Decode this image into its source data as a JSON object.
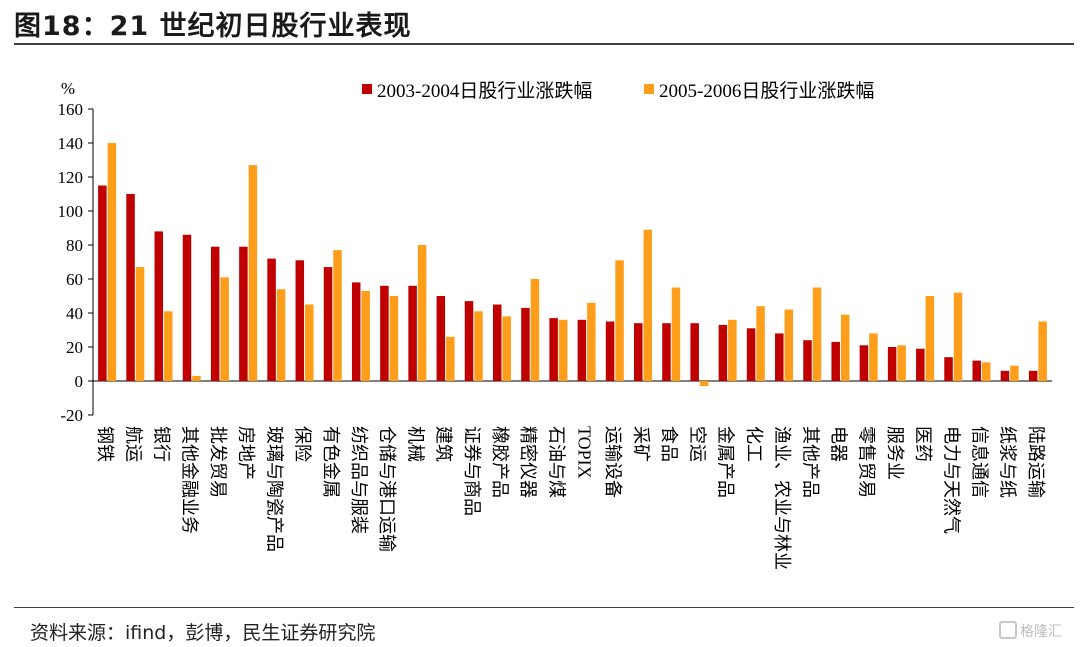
{
  "header": {
    "title": "图18：21 世纪初日股行业表现"
  },
  "footer": {
    "source": "资料来源：ifind，彭博，民生证券研究院",
    "watermark": "格隆汇"
  },
  "chart_data": {
    "type": "bar",
    "unit": "%",
    "ylim": [
      -20,
      160
    ],
    "yticks": [
      160,
      140,
      120,
      100,
      80,
      60,
      40,
      20,
      0,
      -20
    ],
    "legend_position": "top",
    "categories": [
      "钢铁",
      "航运",
      "银行",
      "其他金融业务",
      "批发贸易",
      "房地产",
      "玻璃与陶瓷产品",
      "保险",
      "有色金属",
      "纺织品与服装",
      "仓储与港口运输",
      "机械",
      "建筑",
      "证券与商品",
      "橡胶产品",
      "精密仪器",
      "石油与煤",
      "TOPIX",
      "运输设备",
      "采矿",
      "食品",
      "空运",
      "金属产品",
      "化工",
      "渔业、农业与林业",
      "其他产品",
      "电器",
      "零售贸易",
      "服务业",
      "医药",
      "电力与天然气",
      "信息通信",
      "纸浆与纸",
      "陆路运输"
    ],
    "series": [
      {
        "name": "2003-2004日股行业涨跌幅",
        "color": "#c00000",
        "values": [
          115,
          110,
          88,
          86,
          79,
          79,
          72,
          71,
          67,
          58,
          56,
          56,
          50,
          47,
          45,
          43,
          37,
          36,
          35,
          34,
          34,
          34,
          33,
          31,
          28,
          24,
          23,
          21,
          20,
          19,
          14,
          12,
          6,
          6
        ]
      },
      {
        "name": "2005-2006日股行业涨跌幅",
        "color": "#ff9e1b",
        "values": [
          140,
          67,
          41,
          3,
          61,
          127,
          54,
          45,
          77,
          53,
          50,
          80,
          26,
          41,
          38,
          60,
          36,
          46,
          71,
          89,
          55,
          -3,
          36,
          44,
          42,
          55,
          39,
          28,
          21,
          50,
          52,
          11,
          9,
          35
        ]
      }
    ]
  }
}
